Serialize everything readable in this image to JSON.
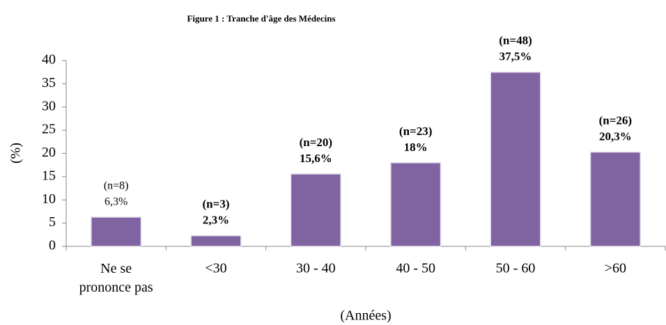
{
  "chart_data": {
    "type": "bar",
    "title": "Figure 1 : Tranche d'âge des Médecins",
    "y_label": "(%)",
    "x_label": "(Années)",
    "categories": [
      "Ne se prononce pas",
      "<30",
      "30 - 40",
      "40 - 50",
      "50 - 60",
      ">60"
    ],
    "values": [
      6.3,
      2.3,
      15.6,
      18,
      37.5,
      20.3
    ],
    "value_labels": [
      "6,3%",
      "2,3%",
      "15,6%",
      "18%",
      "37,5%",
      "20,3%"
    ],
    "n_labels": [
      "(n=8)",
      "(n=3)",
      "(n=20)",
      "(n=23)",
      "(n=48)",
      "(n=26)"
    ],
    "label_bold": [
      false,
      true,
      true,
      true,
      true,
      true
    ],
    "color": "#8064a2",
    "ylim": [
      0,
      40
    ],
    "yticks": [
      0,
      5,
      10,
      15,
      20,
      25,
      30,
      35,
      40
    ],
    "grid": false
  }
}
